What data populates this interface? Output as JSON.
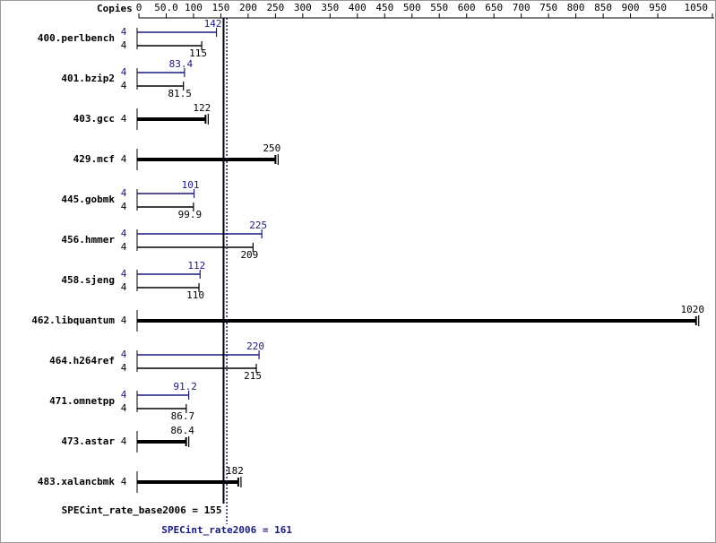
{
  "chart_data": {
    "type": "spec-rate",
    "axis_label": "Copies",
    "xlim": [
      0,
      1050
    ],
    "xticks": [
      0,
      {
        "value": 50,
        "label": "50.0"
      },
      100,
      150,
      200,
      250,
      300,
      350,
      400,
      450,
      500,
      550,
      600,
      650,
      700,
      750,
      800,
      850,
      900,
      950,
      1050
    ],
    "categories": [
      "400.perlbench",
      "401.bzip2",
      "403.gcc",
      "429.mcf",
      "445.gobmk",
      "456.hmmer",
      "458.sjeng",
      "462.libquantum",
      "464.h264ref",
      "471.omnetpp",
      "473.astar",
      "483.xalancbmk"
    ],
    "base": {
      "color": "#000000",
      "copies": [
        4,
        4,
        4,
        4,
        4,
        4,
        4,
        4,
        4,
        4,
        4,
        4
      ],
      "values": [
        115,
        81.5,
        122,
        250,
        99.9,
        209,
        110,
        1020,
        215,
        86.7,
        86.4,
        182
      ]
    },
    "peak": {
      "color": "#191980",
      "copies": [
        4,
        4,
        null,
        null,
        4,
        4,
        4,
        null,
        4,
        4,
        null,
        null
      ],
      "values": [
        142,
        83.4,
        null,
        null,
        101,
        225,
        112,
        null,
        220,
        91.2,
        null,
        null
      ]
    },
    "base_ref": {
      "label": "SPECint_rate_base2006 = 155",
      "value": 155
    },
    "peak_ref": {
      "label": "SPECint_rate2006 = 161",
      "value": 161
    }
  }
}
